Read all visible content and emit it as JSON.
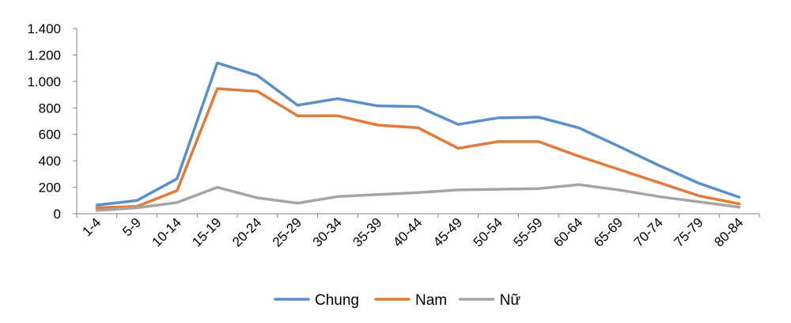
{
  "chart_data": {
    "type": "line",
    "categories": [
      "1-4",
      "5-9",
      "10-14",
      "15-19",
      "20-24",
      "25-29",
      "30-34",
      "35-39",
      "40-44",
      "45-49",
      "50-54",
      "55-59",
      "60-64",
      "65-69",
      "70-74",
      "75-79",
      "80-84"
    ],
    "series": [
      {
        "name": "Chung",
        "color": "#5B8FC9",
        "values": [
          65,
          100,
          265,
          1140,
          1045,
          820,
          870,
          815,
          810,
          675,
          725,
          730,
          650,
          510,
          365,
          230,
          125
        ]
      },
      {
        "name": "Nam",
        "color": "#E07B39",
        "values": [
          45,
          55,
          175,
          945,
          925,
          740,
          740,
          670,
          650,
          495,
          545,
          545,
          435,
          335,
          235,
          135,
          75
        ]
      },
      {
        "name": "Nữ",
        "color": "#A5A5A5",
        "values": [
          25,
          45,
          85,
          200,
          120,
          80,
          130,
          145,
          160,
          180,
          185,
          190,
          220,
          180,
          130,
          90,
          50
        ]
      }
    ],
    "ylim": [
      0,
      1400
    ],
    "yticks": [
      0,
      200,
      400,
      600,
      800,
      1000,
      1200,
      1400
    ],
    "ytick_labels": [
      "0",
      "200",
      "400",
      "600",
      "800",
      "1.000",
      "1.200",
      "1.400"
    ],
    "grid": false,
    "legend_position": "bottom"
  }
}
